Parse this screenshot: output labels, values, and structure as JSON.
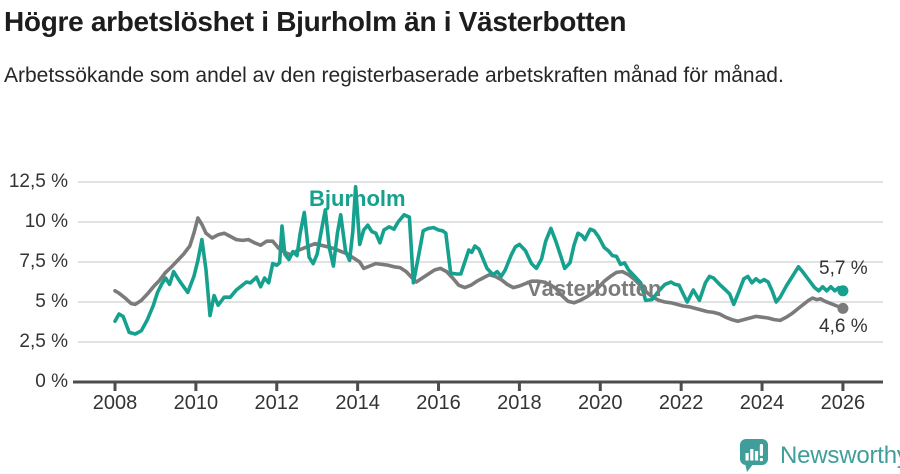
{
  "header": {
    "title": "Högre arbetslöshet i Bjurholm än i Västerbotten",
    "subtitle": "Arbetssökande som andel av den registerbaserade arbetskraften månad för månad."
  },
  "footer": {
    "brand": "Newsworthy"
  },
  "colors": {
    "bjurholm": "#16a18f",
    "vasterbotten": "#7b7b7b",
    "grid": "#d9d9d9",
    "axis": "#4c4c4c",
    "tick_text": "#333333",
    "logo": "#3f9e9a"
  },
  "chart_data": {
    "type": "line",
    "unit": "%",
    "grid": true,
    "legend_position": "inline-labels",
    "xlabel": "",
    "ylabel": "",
    "ylim": [
      0,
      13.5
    ],
    "x_axis": {
      "ticks": [
        2008,
        2010,
        2012,
        2014,
        2016,
        2018,
        2020,
        2022,
        2024,
        2026
      ]
    },
    "y_axis": {
      "tick_values": [
        0,
        2.5,
        5,
        7.5,
        10,
        12.5
      ],
      "tick_labels": [
        "0 %",
        "2,5 %",
        "5 %",
        "7,5 %",
        "10 %",
        "12,5 %"
      ]
    },
    "series": [
      {
        "name": "Västerbotten",
        "color": "#7b7b7b",
        "end_label": "4,6 %",
        "end_value": 4.6,
        "points": [
          [
            2008.0,
            5.7
          ],
          [
            2008.1,
            5.55
          ],
          [
            2008.25,
            5.25
          ],
          [
            2008.4,
            4.9
          ],
          [
            2008.5,
            4.85
          ],
          [
            2008.65,
            5.1
          ],
          [
            2008.8,
            5.5
          ],
          [
            2008.95,
            5.95
          ],
          [
            2009.1,
            6.35
          ],
          [
            2009.25,
            6.85
          ],
          [
            2009.4,
            7.2
          ],
          [
            2009.55,
            7.6
          ],
          [
            2009.7,
            8.0
          ],
          [
            2009.85,
            8.5
          ],
          [
            2009.95,
            9.3
          ],
          [
            2010.05,
            10.25
          ],
          [
            2010.15,
            9.85
          ],
          [
            2010.25,
            9.3
          ],
          [
            2010.4,
            9.0
          ],
          [
            2010.55,
            9.2
          ],
          [
            2010.7,
            9.3
          ],
          [
            2010.85,
            9.1
          ],
          [
            2011.0,
            8.9
          ],
          [
            2011.15,
            8.85
          ],
          [
            2011.3,
            8.9
          ],
          [
            2011.45,
            8.7
          ],
          [
            2011.6,
            8.55
          ],
          [
            2011.75,
            8.8
          ],
          [
            2011.9,
            8.8
          ],
          [
            2012.05,
            8.35
          ],
          [
            2012.2,
            8.1
          ],
          [
            2012.35,
            7.95
          ],
          [
            2012.5,
            8.2
          ],
          [
            2012.65,
            8.35
          ],
          [
            2012.8,
            8.5
          ],
          [
            2012.95,
            8.65
          ],
          [
            2013.1,
            8.55
          ],
          [
            2013.25,
            8.45
          ],
          [
            2013.4,
            8.35
          ],
          [
            2013.55,
            8.2
          ],
          [
            2013.7,
            8.05
          ],
          [
            2013.8,
            7.9
          ],
          [
            2013.9,
            7.75
          ],
          [
            2014.05,
            7.5
          ],
          [
            2014.15,
            7.1
          ],
          [
            2014.3,
            7.25
          ],
          [
            2014.45,
            7.4
          ],
          [
            2014.6,
            7.35
          ],
          [
            2014.75,
            7.3
          ],
          [
            2014.9,
            7.2
          ],
          [
            2015.05,
            7.15
          ],
          [
            2015.2,
            6.9
          ],
          [
            2015.35,
            6.5
          ],
          [
            2015.45,
            6.25
          ],
          [
            2015.6,
            6.5
          ],
          [
            2015.75,
            6.75
          ],
          [
            2015.9,
            7.0
          ],
          [
            2016.05,
            7.1
          ],
          [
            2016.2,
            6.9
          ],
          [
            2016.35,
            6.5
          ],
          [
            2016.5,
            6.05
          ],
          [
            2016.65,
            5.9
          ],
          [
            2016.8,
            6.05
          ],
          [
            2016.95,
            6.3
          ],
          [
            2017.1,
            6.5
          ],
          [
            2017.25,
            6.7
          ],
          [
            2017.4,
            6.6
          ],
          [
            2017.55,
            6.4
          ],
          [
            2017.7,
            6.1
          ],
          [
            2017.85,
            5.9
          ],
          [
            2018.0,
            6.0
          ],
          [
            2018.15,
            6.15
          ],
          [
            2018.3,
            6.3
          ],
          [
            2018.45,
            6.3
          ],
          [
            2018.6,
            6.25
          ],
          [
            2018.75,
            6.1
          ],
          [
            2018.9,
            5.85
          ],
          [
            2019.05,
            5.4
          ],
          [
            2019.2,
            5.05
          ],
          [
            2019.35,
            4.95
          ],
          [
            2019.5,
            5.1
          ],
          [
            2019.65,
            5.3
          ],
          [
            2019.8,
            5.55
          ],
          [
            2019.95,
            5.9
          ],
          [
            2020.1,
            6.3
          ],
          [
            2020.25,
            6.6
          ],
          [
            2020.4,
            6.85
          ],
          [
            2020.55,
            6.9
          ],
          [
            2020.7,
            6.7
          ],
          [
            2020.85,
            6.4
          ],
          [
            2021.0,
            6.0
          ],
          [
            2021.15,
            5.6
          ],
          [
            2021.3,
            5.3
          ],
          [
            2021.45,
            5.1
          ],
          [
            2021.6,
            5.0
          ],
          [
            2021.75,
            4.95
          ],
          [
            2021.9,
            4.85
          ],
          [
            2022.05,
            4.75
          ],
          [
            2022.2,
            4.7
          ],
          [
            2022.35,
            4.6
          ],
          [
            2022.5,
            4.5
          ],
          [
            2022.65,
            4.4
          ],
          [
            2022.8,
            4.35
          ],
          [
            2022.95,
            4.25
          ],
          [
            2023.1,
            4.05
          ],
          [
            2023.25,
            3.9
          ],
          [
            2023.4,
            3.8
          ],
          [
            2023.55,
            3.9
          ],
          [
            2023.7,
            4.0
          ],
          [
            2023.85,
            4.1
          ],
          [
            2024.0,
            4.05
          ],
          [
            2024.15,
            4.0
          ],
          [
            2024.3,
            3.9
          ],
          [
            2024.45,
            3.85
          ],
          [
            2024.6,
            4.05
          ],
          [
            2024.75,
            4.3
          ],
          [
            2024.9,
            4.6
          ],
          [
            2025.05,
            4.9
          ],
          [
            2025.15,
            5.1
          ],
          [
            2025.25,
            5.25
          ],
          [
            2025.35,
            5.15
          ],
          [
            2025.45,
            5.2
          ],
          [
            2025.55,
            5.05
          ],
          [
            2025.7,
            4.9
          ],
          [
            2025.85,
            4.75
          ],
          [
            2026.0,
            4.6
          ]
        ]
      },
      {
        "name": "Bjurholm",
        "color": "#16a18f",
        "end_label": "5,7 %",
        "end_value": 5.7,
        "points": [
          [
            2008.0,
            3.8
          ],
          [
            2008.1,
            4.25
          ],
          [
            2008.2,
            4.1
          ],
          [
            2008.35,
            3.1
          ],
          [
            2008.5,
            3.0
          ],
          [
            2008.65,
            3.2
          ],
          [
            2008.8,
            3.9
          ],
          [
            2008.95,
            4.8
          ],
          [
            2009.05,
            5.6
          ],
          [
            2009.15,
            6.1
          ],
          [
            2009.25,
            6.5
          ],
          [
            2009.35,
            6.1
          ],
          [
            2009.45,
            6.9
          ],
          [
            2009.6,
            6.3
          ],
          [
            2009.7,
            5.95
          ],
          [
            2009.8,
            5.6
          ],
          [
            2009.95,
            6.6
          ],
          [
            2010.05,
            7.6
          ],
          [
            2010.15,
            8.9
          ],
          [
            2010.25,
            7.0
          ],
          [
            2010.35,
            4.15
          ],
          [
            2010.45,
            5.4
          ],
          [
            2010.55,
            4.8
          ],
          [
            2010.7,
            5.3
          ],
          [
            2010.85,
            5.3
          ],
          [
            2011.0,
            5.75
          ],
          [
            2011.1,
            5.95
          ],
          [
            2011.25,
            6.25
          ],
          [
            2011.35,
            6.2
          ],
          [
            2011.5,
            6.55
          ],
          [
            2011.6,
            5.95
          ],
          [
            2011.7,
            6.5
          ],
          [
            2011.8,
            6.2
          ],
          [
            2011.9,
            7.4
          ],
          [
            2012.0,
            7.3
          ],
          [
            2012.07,
            7.45
          ],
          [
            2012.13,
            9.75
          ],
          [
            2012.2,
            8.0
          ],
          [
            2012.3,
            7.65
          ],
          [
            2012.4,
            8.15
          ],
          [
            2012.5,
            7.9
          ],
          [
            2012.58,
            9.3
          ],
          [
            2012.68,
            10.6
          ],
          [
            2012.8,
            7.8
          ],
          [
            2012.9,
            7.4
          ],
          [
            2013.0,
            8.0
          ],
          [
            2013.1,
            9.4
          ],
          [
            2013.2,
            10.75
          ],
          [
            2013.3,
            8.4
          ],
          [
            2013.4,
            7.25
          ],
          [
            2013.5,
            9.3
          ],
          [
            2013.58,
            10.45
          ],
          [
            2013.7,
            8.2
          ],
          [
            2013.8,
            7.6
          ],
          [
            2013.88,
            9.4
          ],
          [
            2013.95,
            12.2
          ],
          [
            2014.05,
            8.6
          ],
          [
            2014.15,
            9.5
          ],
          [
            2014.25,
            9.8
          ],
          [
            2014.35,
            9.4
          ],
          [
            2014.45,
            9.3
          ],
          [
            2014.55,
            8.7
          ],
          [
            2014.65,
            9.5
          ],
          [
            2014.78,
            9.7
          ],
          [
            2014.9,
            9.55
          ],
          [
            2015.0,
            10.0
          ],
          [
            2015.15,
            10.45
          ],
          [
            2015.28,
            10.3
          ],
          [
            2015.38,
            6.2
          ],
          [
            2015.5,
            7.8
          ],
          [
            2015.62,
            9.45
          ],
          [
            2015.75,
            9.6
          ],
          [
            2015.88,
            9.65
          ],
          [
            2016.0,
            9.5
          ],
          [
            2016.1,
            9.45
          ],
          [
            2016.18,
            9.3
          ],
          [
            2016.3,
            6.8
          ],
          [
            2016.45,
            6.75
          ],
          [
            2016.55,
            6.75
          ],
          [
            2016.65,
            7.5
          ],
          [
            2016.75,
            8.25
          ],
          [
            2016.82,
            8.1
          ],
          [
            2016.9,
            8.5
          ],
          [
            2017.0,
            8.3
          ],
          [
            2017.1,
            7.7
          ],
          [
            2017.2,
            7.1
          ],
          [
            2017.35,
            6.7
          ],
          [
            2017.45,
            6.9
          ],
          [
            2017.55,
            6.6
          ],
          [
            2017.65,
            7.0
          ],
          [
            2017.8,
            7.95
          ],
          [
            2017.9,
            8.45
          ],
          [
            2018.0,
            8.6
          ],
          [
            2018.15,
            8.2
          ],
          [
            2018.3,
            7.4
          ],
          [
            2018.42,
            7.1
          ],
          [
            2018.55,
            7.7
          ],
          [
            2018.65,
            8.8
          ],
          [
            2018.78,
            9.6
          ],
          [
            2018.9,
            8.8
          ],
          [
            2019.02,
            7.9
          ],
          [
            2019.12,
            7.1
          ],
          [
            2019.25,
            7.45
          ],
          [
            2019.35,
            8.55
          ],
          [
            2019.45,
            9.3
          ],
          [
            2019.55,
            9.15
          ],
          [
            2019.62,
            8.9
          ],
          [
            2019.75,
            9.55
          ],
          [
            2019.85,
            9.45
          ],
          [
            2019.95,
            9.1
          ],
          [
            2020.1,
            8.4
          ],
          [
            2020.2,
            8.2
          ],
          [
            2020.3,
            7.9
          ],
          [
            2020.4,
            7.85
          ],
          [
            2020.5,
            7.35
          ],
          [
            2020.6,
            7.45
          ],
          [
            2020.7,
            7.0
          ],
          [
            2020.85,
            6.6
          ],
          [
            2021.0,
            6.2
          ],
          [
            2021.12,
            5.1
          ],
          [
            2021.28,
            5.15
          ],
          [
            2021.45,
            5.7
          ],
          [
            2021.6,
            6.1
          ],
          [
            2021.75,
            6.25
          ],
          [
            2021.85,
            6.1
          ],
          [
            2021.95,
            6.05
          ],
          [
            2022.05,
            5.5
          ],
          [
            2022.15,
            5.0
          ],
          [
            2022.3,
            5.75
          ],
          [
            2022.45,
            5.1
          ],
          [
            2022.6,
            6.2
          ],
          [
            2022.7,
            6.6
          ],
          [
            2022.8,
            6.5
          ],
          [
            2022.95,
            6.1
          ],
          [
            2023.1,
            5.75
          ],
          [
            2023.2,
            5.5
          ],
          [
            2023.3,
            4.85
          ],
          [
            2023.42,
            5.6
          ],
          [
            2023.55,
            6.45
          ],
          [
            2023.65,
            6.6
          ],
          [
            2023.75,
            6.2
          ],
          [
            2023.85,
            6.45
          ],
          [
            2023.95,
            6.25
          ],
          [
            2024.05,
            6.4
          ],
          [
            2024.15,
            6.25
          ],
          [
            2024.25,
            5.7
          ],
          [
            2024.35,
            5.0
          ],
          [
            2024.45,
            5.3
          ],
          [
            2024.6,
            6.0
          ],
          [
            2024.75,
            6.6
          ],
          [
            2024.9,
            7.2
          ],
          [
            2025.0,
            6.9
          ],
          [
            2025.15,
            6.4
          ],
          [
            2025.3,
            5.9
          ],
          [
            2025.4,
            5.7
          ],
          [
            2025.5,
            5.95
          ],
          [
            2025.6,
            5.7
          ],
          [
            2025.7,
            5.95
          ],
          [
            2025.8,
            5.7
          ],
          [
            2025.9,
            5.9
          ],
          [
            2026.0,
            5.7
          ]
        ]
      }
    ]
  }
}
